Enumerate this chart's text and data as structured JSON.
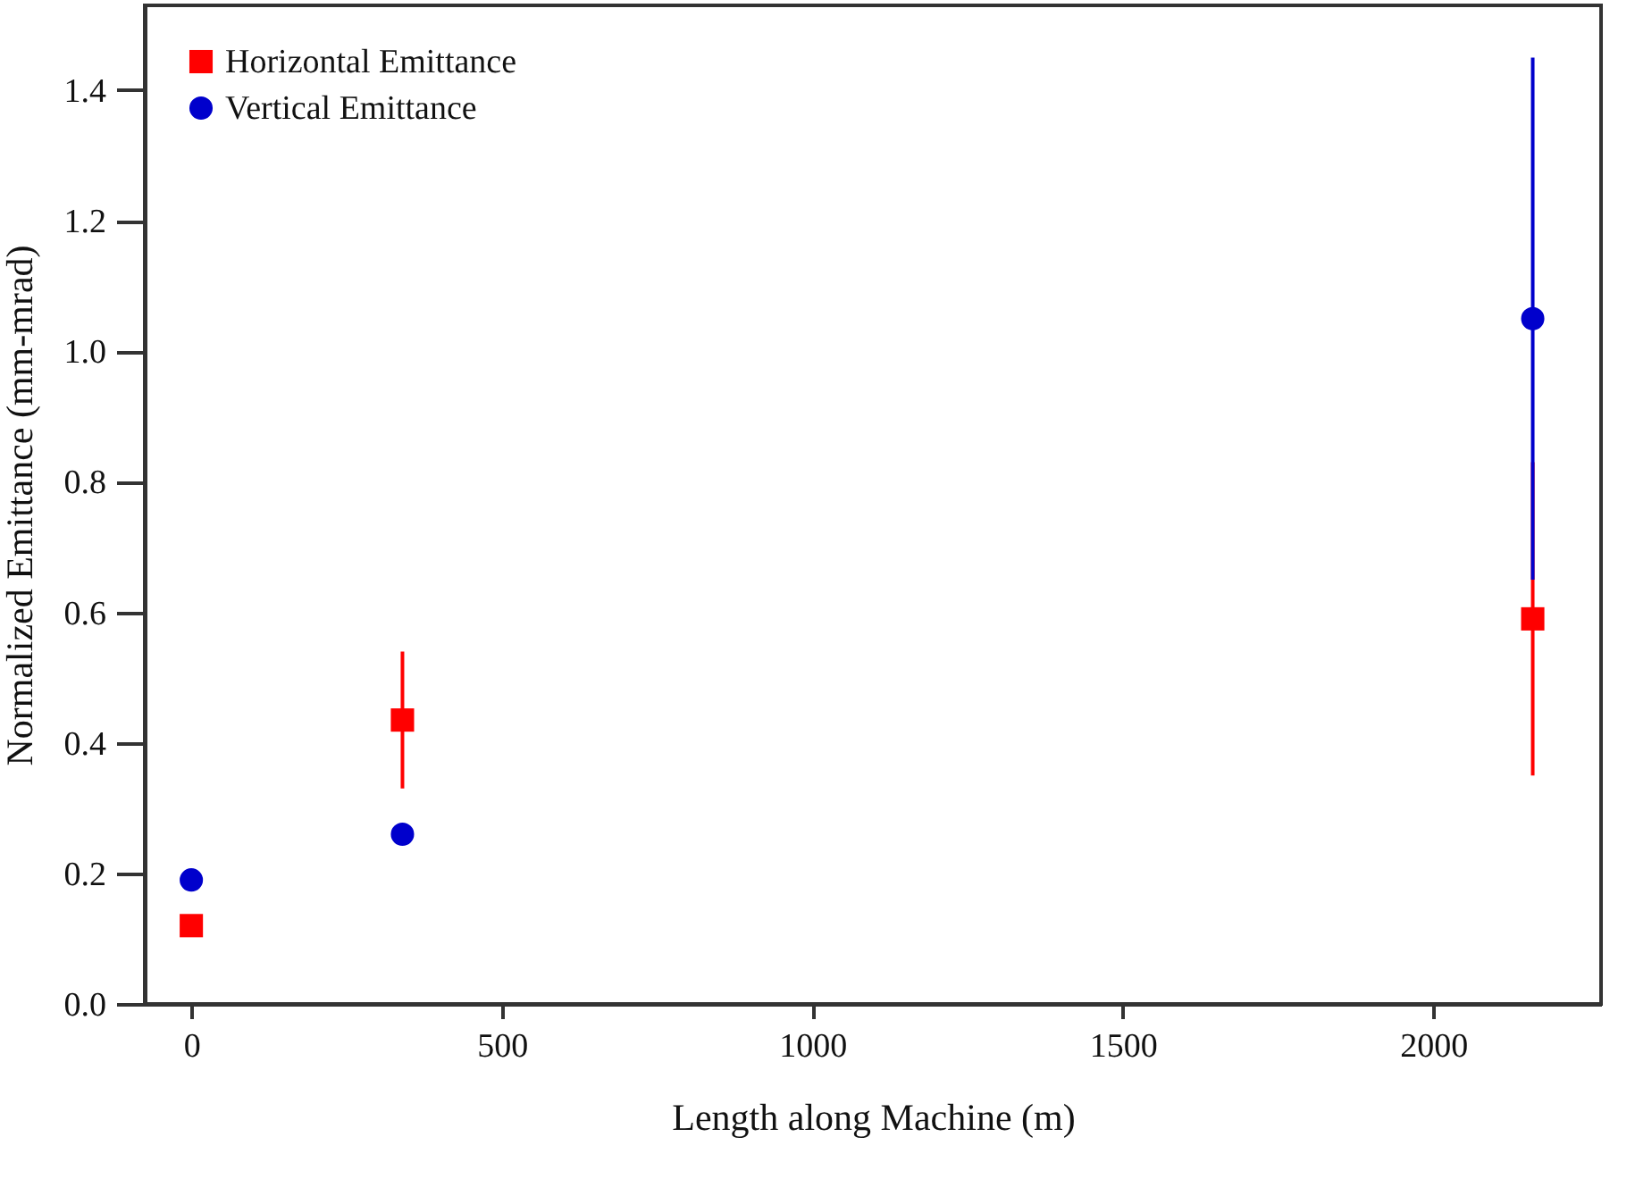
{
  "chart_data": {
    "type": "scatter",
    "xlabel": "Length along Machine (m)",
    "ylabel": "Normalized Emittance (mm-mrad)",
    "xlim": [
      -75,
      2270
    ],
    "ylim": [
      0,
      1.53
    ],
    "xticks": [
      0,
      500,
      1000,
      1500,
      2000
    ],
    "yticks": [
      {
        "value": 0,
        "label": "0.0"
      },
      {
        "value": 0.2,
        "label": "0.2"
      },
      {
        "value": 0.4,
        "label": "0.4"
      },
      {
        "value": 0.6,
        "label": "0.6"
      },
      {
        "value": 0.8,
        "label": "0.8"
      },
      {
        "value": 1.0,
        "label": "1.0"
      },
      {
        "value": 1.2,
        "label": "1.2"
      },
      {
        "value": 1.4,
        "label": "1.4"
      }
    ],
    "grid": false,
    "legend": "top left",
    "series": [
      {
        "name": "Horizontal Emittance",
        "color": "#ff0000",
        "marker": "square",
        "x": [
          0,
          340,
          2160
        ],
        "values": [
          0.12,
          0.435,
          0.59
        ],
        "errors": [
          null,
          [
            0.33,
            0.54
          ],
          [
            0.35,
            0.83
          ]
        ]
      },
      {
        "name": "Vertical Emittance",
        "color": "#0000cc",
        "marker": "circle",
        "x": [
          0,
          340,
          2160
        ],
        "values": [
          0.19,
          0.26,
          1.05
        ],
        "errors": [
          null,
          null,
          [
            0.65,
            1.45
          ]
        ]
      }
    ]
  }
}
